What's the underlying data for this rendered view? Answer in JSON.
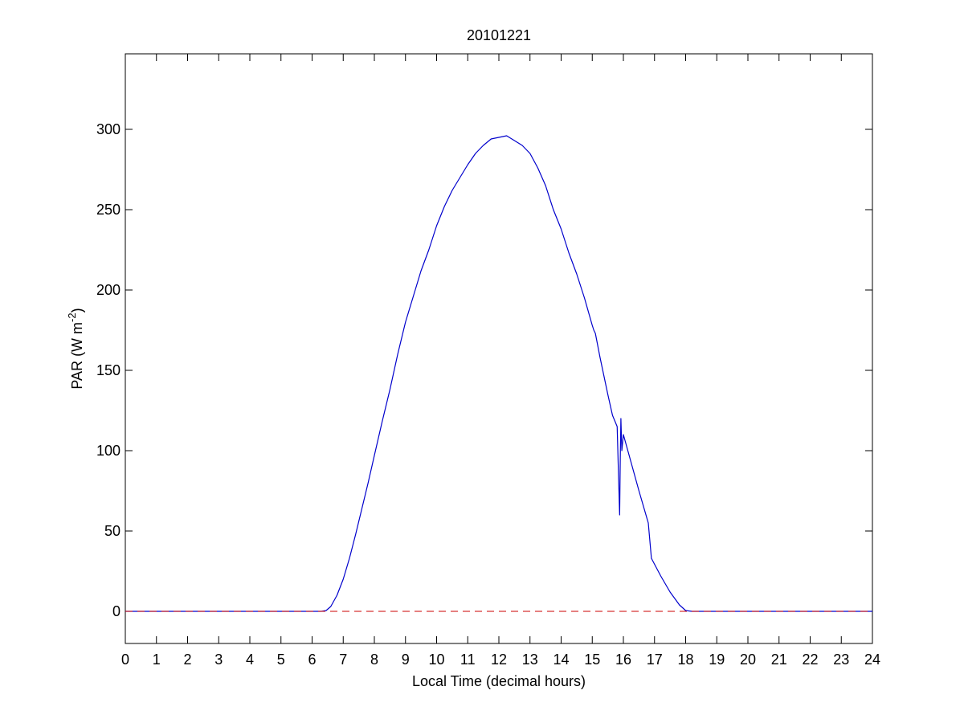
{
  "chart_data": {
    "type": "line",
    "title": "20101221",
    "xlabel": "Local Time (decimal hours)",
    "ylabel": "PAR (W m",
    "ylabel_sup": "-2",
    "ylabel_end": ")",
    "xlim": [
      0,
      24
    ],
    "ylim": [
      -20,
      347
    ],
    "xticks": [
      0,
      1,
      2,
      3,
      4,
      5,
      6,
      7,
      8,
      9,
      10,
      11,
      12,
      13,
      14,
      15,
      16,
      17,
      18,
      19,
      20,
      21,
      22,
      23,
      24
    ],
    "yticks": [
      0,
      50,
      100,
      150,
      200,
      250,
      300
    ],
    "grid": false,
    "legend": "none",
    "series": [
      {
        "color": "#0000cc",
        "style": "solid",
        "x": [
          0,
          6.0,
          6.3,
          6.45,
          6.6,
          6.8,
          7.0,
          7.2,
          7.4,
          7.6,
          7.8,
          8.0,
          8.25,
          8.5,
          8.75,
          9.0,
          9.25,
          9.5,
          9.75,
          10.0,
          10.25,
          10.5,
          10.75,
          11.0,
          11.25,
          11.5,
          11.75,
          12.0,
          12.25,
          12.5,
          12.75,
          13.0,
          13.25,
          13.5,
          13.75,
          14.0,
          14.25,
          14.5,
          14.75,
          15.0,
          15.05,
          15.1,
          15.25,
          15.5,
          15.65,
          15.8,
          15.85,
          15.88,
          15.9,
          15.92,
          15.95,
          16.0,
          16.2,
          16.5,
          16.8,
          16.9,
          17.2,
          17.5,
          17.8,
          18.0,
          18.2,
          19,
          20,
          21,
          22,
          23,
          24
        ],
        "y": [
          0,
          0,
          0,
          0.5,
          3,
          10,
          20,
          33,
          48,
          64,
          80,
          97,
          118,
          138,
          160,
          180,
          196,
          212,
          225,
          240,
          252,
          262,
          270,
          278,
          285,
          290,
          294,
          295,
          296,
          293,
          290,
          285,
          276,
          265,
          250,
          238,
          223,
          210,
          195,
          178,
          175,
          173,
          158,
          135,
          122,
          115,
          80,
          60,
          95,
          120,
          100,
          110,
          96,
          75,
          55,
          33,
          22,
          12,
          4,
          0.5,
          0,
          0,
          0,
          0,
          0,
          0,
          0
        ]
      },
      {
        "color": "#cc0000",
        "style": "dashed",
        "x": [
          0,
          24
        ],
        "y": [
          0,
          0
        ]
      }
    ]
  }
}
